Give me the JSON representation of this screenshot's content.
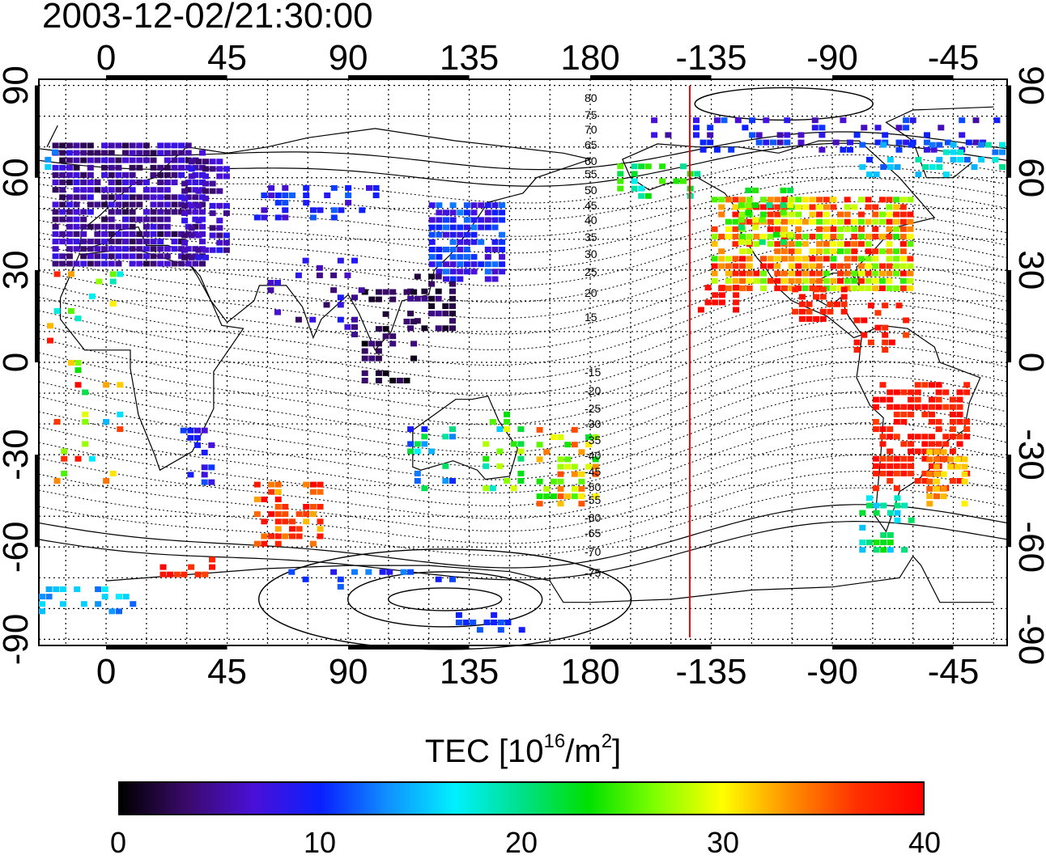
{
  "title": "2003-12-02/21:30:00",
  "map": {
    "top_lon_labels": [
      "0",
      "45",
      "90",
      "135",
      "180",
      "-135",
      "-90",
      "-45"
    ],
    "bottom_lon_labels": [
      "0",
      "45",
      "90",
      "135",
      "180",
      "-135",
      "-90",
      "-45"
    ],
    "left_lat_labels": [
      "90",
      "60",
      "30",
      "0",
      "-30",
      "-60",
      "-90"
    ],
    "right_lat_labels": [
      "90",
      "60",
      "30",
      "0",
      "-30",
      "-60",
      "-90"
    ],
    "lon_range": [
      -25,
      335
    ],
    "lat_range": [
      -92,
      92
    ],
    "grid_lines": "dotted",
    "terminator_longitude": -143,
    "terminator_color": "#ff0000",
    "contour_labels": [
      "80",
      "75",
      "70",
      "65",
      "60",
      "55",
      "50",
      "45",
      "40",
      "35",
      "30",
      "25",
      "20",
      "15",
      "-15",
      "-20",
      "-25",
      "-30",
      "-35",
      "-40",
      "-45",
      "-50",
      "-55",
      "-60",
      "-65",
      "-70",
      "-75"
    ],
    "data_color_scale": "black-purple-blue-cyan-green-yellow-red"
  },
  "colorbar": {
    "title_main": "TEC  [10",
    "title_exp1": "16",
    "title_mid": "/m",
    "title_exp2": "2",
    "title_end": "]",
    "tick_labels": [
      "0",
      "10",
      "20",
      "30",
      "40"
    ],
    "min": 0,
    "max": 40,
    "colors": [
      "#000000",
      "#3a0a6a",
      "#4a10d8",
      "#0a20ff",
      "#1090ff",
      "#00f0ff",
      "#00e08a",
      "#00e000",
      "#80ff00",
      "#ffff00",
      "#ff9000",
      "#ff3000",
      "#ff0000"
    ]
  }
}
